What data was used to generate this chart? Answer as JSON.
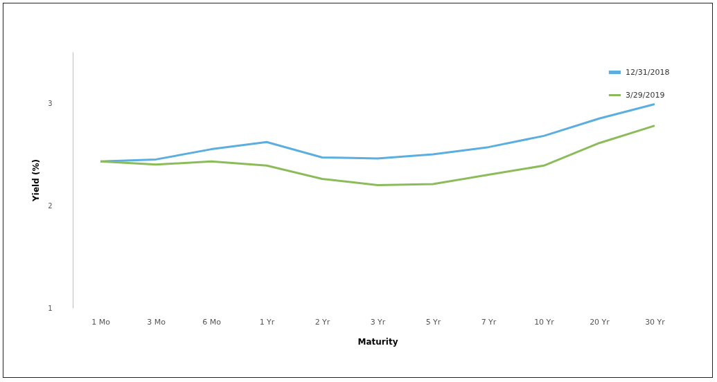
{
  "chart_data": {
    "type": "line",
    "xlabel": "Maturity",
    "ylabel": "Yield (%)",
    "categories": [
      "1 Mo",
      "3 Mo",
      "6 Mo",
      "1 Yr",
      "2 Yr",
      "3 Yr",
      "5 Yr",
      "7 Yr",
      "10 Yr",
      "20 Yr",
      "30 Yr"
    ],
    "series": [
      {
        "name": "12/31/2018",
        "color": "#5aaee0",
        "values": [
          2.43,
          2.45,
          2.55,
          2.62,
          2.47,
          2.46,
          2.5,
          2.57,
          2.68,
          2.85,
          2.99
        ]
      },
      {
        "name": "3/29/2019",
        "color": "#8cbc5a",
        "values": [
          2.43,
          2.4,
          2.43,
          2.39,
          2.26,
          2.2,
          2.21,
          2.3,
          2.39,
          2.61,
          2.78
        ]
      }
    ],
    "ylim": [
      1,
      3.5
    ],
    "yticks": [
      1,
      2,
      3
    ],
    "grid": false,
    "legend": "top right",
    "line_style": "solid",
    "marker": "none"
  }
}
